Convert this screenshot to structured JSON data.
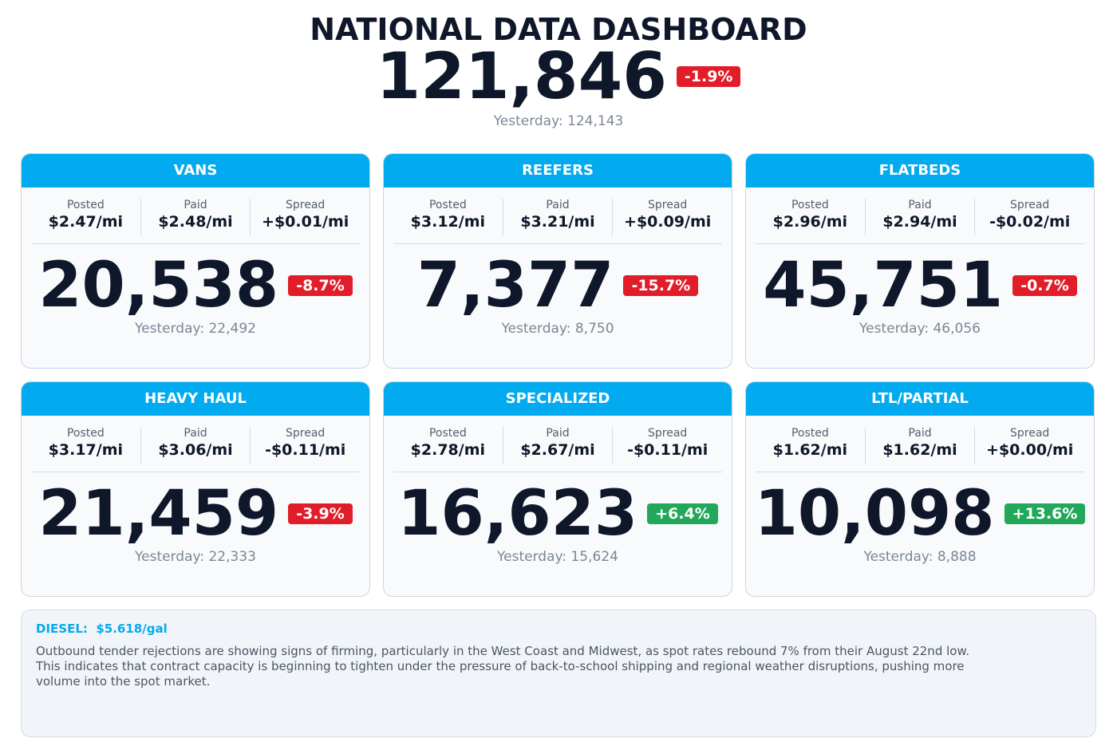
{
  "header": {
    "title": "NATIONAL DATA DASHBOARD",
    "total": "121,846",
    "change": "-1.9%",
    "yesterday": "Yesterday: 124,143"
  },
  "cards": [
    {
      "title": "VANS",
      "metrics": [
        {
          "label": "Posted",
          "value": "$2.47/mi"
        },
        {
          "label": "Paid",
          "value": "$2.48/mi"
        },
        {
          "label": "Spread",
          "value": "+$0.01/mi"
        }
      ],
      "count": "20,538",
      "change": "-8.7%",
      "yesterday": "Yesterday: 22,492"
    },
    {
      "title": "REEFERS",
      "metrics": [
        {
          "label": "Posted",
          "value": "$3.12/mi"
        },
        {
          "label": "Paid",
          "value": "$3.21/mi"
        },
        {
          "label": "Spread",
          "value": "+$0.09/mi"
        }
      ],
      "count": "7,377",
      "change": "-15.7%",
      "yesterday": "Yesterday: 8,750"
    },
    {
      "title": "FLATBEDS",
      "metrics": [
        {
          "label": "Posted",
          "value": "$2.96/mi"
        },
        {
          "label": "Paid",
          "value": "$2.94/mi"
        },
        {
          "label": "Spread",
          "value": "-$0.02/mi"
        }
      ],
      "count": "45,751",
      "change": "-0.7%",
      "yesterday": "Yesterday: 46,056"
    },
    {
      "title": "HEAVY HAUL",
      "metrics": [
        {
          "label": "Posted",
          "value": "$3.17/mi"
        },
        {
          "label": "Paid",
          "value": "$3.06/mi"
        },
        {
          "label": "Spread",
          "value": "-$0.11/mi"
        }
      ],
      "count": "21,459",
      "change": "-3.9%",
      "yesterday": "Yesterday: 22,333"
    },
    {
      "title": "SPECIALIZED",
      "metrics": [
        {
          "label": "Posted",
          "value": "$2.78/mi"
        },
        {
          "label": "Paid",
          "value": "$2.67/mi"
        },
        {
          "label": "Spread",
          "value": "-$0.11/mi"
        }
      ],
      "count": "16,623",
      "change": "+6.4%",
      "yesterday": "Yesterday: 15,624"
    },
    {
      "title": "LTL/PARTIAL",
      "metrics": [
        {
          "label": "Posted",
          "value": "$1.62/mi"
        },
        {
          "label": "Paid",
          "value": "$1.62/mi"
        },
        {
          "label": "Spread",
          "value": "+$0.00/mi"
        }
      ],
      "count": "10,098",
      "change": "+13.6%",
      "yesterday": "Yesterday: 8,888"
    }
  ],
  "footer": {
    "diesel_label": "DIESEL:",
    "diesel_value": "$5.618/gal",
    "text": "Outbound tender rejections are showing signs of firming, particularly in the West Coast and Midwest, as spot rates rebound 7% from their August 22nd low. This indicates that contract capacity is beginning to tighten under the pressure of back-to-school shipping and regional weather disruptions, pushing more volume into the spot market."
  }
}
